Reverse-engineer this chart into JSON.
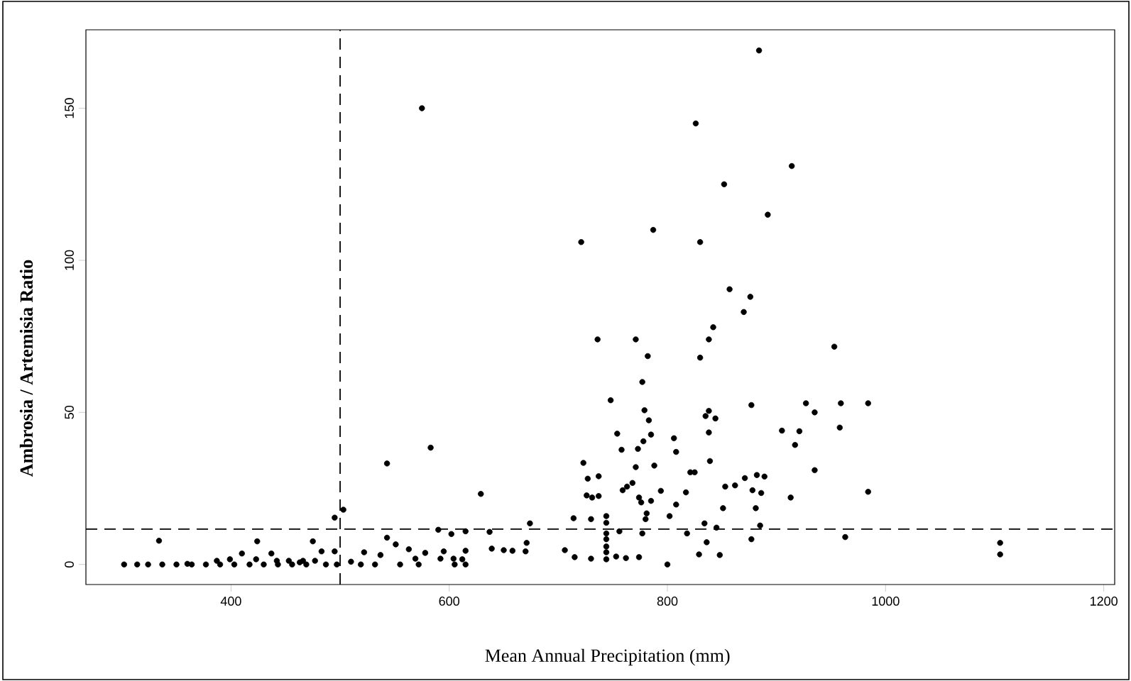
{
  "chart_data": {
    "type": "scatter",
    "xlabel": "Mean Annual Precipitation (mm)",
    "ylabel": "Ambrosia / Artemisia Ratio",
    "xlim": [
      267,
      1210
    ],
    "ylim": [
      -6.6,
      175.8
    ],
    "xticks": [
      400,
      600,
      800,
      1000,
      1200
    ],
    "yticks": [
      0,
      50,
      100,
      150
    ],
    "grid": false,
    "marker": "circle",
    "ref_lines": [
      {
        "axis": "x",
        "value": 500,
        "line_style": "dashed",
        "color": "#000000"
      },
      {
        "axis": "y",
        "value": 11.6,
        "line_style": "dashed",
        "color": "#000000"
      }
    ],
    "series": [
      {
        "color": "#000000",
        "x": [
          884,
          575,
          826,
          914,
          852,
          892,
          787,
          721,
          830,
          857,
          876,
          870,
          842,
          736,
          771,
          838,
          953,
          782,
          830,
          777,
          748,
          927,
          959,
          984,
          877,
          779,
          838,
          935,
          835,
          844,
          783,
          905,
          921,
          958,
          754,
          785,
          806,
          838,
          778,
          917,
          583,
          773,
          808,
          758,
          543,
          723,
          771,
          839,
          935,
          788,
          821,
          825,
          882,
          737,
          889,
          871,
          727,
          862,
          768,
          763,
          853,
          759,
          878,
          794,
          886,
          817,
          629,
          984,
          774,
          726,
          731,
          913,
          737,
          776,
          785,
          808,
          881,
          851,
          503,
          781,
          744,
          802,
          495,
          714,
          730,
          780,
          834,
          674,
          885,
          590,
          615,
          637,
          756,
          777,
          602,
          845,
          818,
          877,
          963,
          671,
          543,
          551,
          424,
          334,
          475,
          836,
          744,
          1105,
          1105,
          706,
          639,
          650,
          658,
          670,
          563,
          578,
          595,
          615,
          495,
          522,
          537,
          483,
          410,
          437,
          829,
          848,
          730,
          753,
          762,
          774,
          744,
          715,
          569,
          604,
          592,
          612,
          510,
          477,
          466,
          453,
          442,
          423,
          399,
          387,
          800,
          605,
          615,
          572,
          555,
          532,
          519,
          497,
          487,
          469,
          456,
          443,
          430,
          417,
          403,
          390,
          377,
          364,
          350,
          337,
          324,
          314,
          302,
          360,
          463,
          744,
          744,
          744,
          744
        ],
        "values": [
          169,
          150,
          145,
          131,
          125,
          115,
          110,
          106,
          106,
          90.5,
          88,
          83,
          78,
          74,
          74,
          74,
          71.6,
          68.5,
          68,
          60,
          54,
          53,
          53,
          53,
          52.4,
          50.7,
          50.5,
          50,
          48.8,
          48,
          47.4,
          44,
          43.8,
          45,
          43,
          42.7,
          41.5,
          43.4,
          40.5,
          39.3,
          38.4,
          38,
          37,
          37.7,
          33.2,
          33.4,
          32,
          34,
          31,
          32.5,
          30.3,
          30.3,
          29.4,
          29,
          28.9,
          28.4,
          28.2,
          26,
          26.8,
          25.6,
          25.6,
          24.4,
          24.4,
          24.2,
          23.5,
          23.7,
          23.2,
          23.9,
          22,
          22.7,
          22,
          22,
          22.5,
          20.4,
          20.9,
          19.7,
          18.5,
          18.5,
          18,
          16.8,
          15.9,
          15.9,
          15.4,
          15.2,
          14.9,
          14.9,
          13.5,
          13.5,
          12.8,
          11.4,
          10.9,
          10.7,
          10.9,
          10.2,
          10,
          12.1,
          10.2,
          8.3,
          9,
          7.1,
          8.8,
          6.6,
          7.6,
          7.8,
          7.6,
          7.3,
          5.9,
          7.1,
          3.3,
          4.7,
          5.2,
          4.7,
          4.5,
          4.3,
          5,
          3.8,
          4.3,
          4.5,
          4.3,
          4,
          3.1,
          4.3,
          3.6,
          3.6,
          3.3,
          3.1,
          1.9,
          2.6,
          2.1,
          2.4,
          1.7,
          2.4,
          1.9,
          1.9,
          1.9,
          1.7,
          0.9,
          1.2,
          1.2,
          1.2,
          1.2,
          1.7,
          1.7,
          1.2,
          0,
          0,
          0,
          0,
          0,
          0,
          0,
          0,
          0,
          0,
          0,
          0,
          0,
          0,
          0,
          0,
          0,
          0,
          0,
          0,
          0,
          0,
          0,
          0.2,
          0.7,
          13.7,
          10.2,
          8.3,
          4
        ]
      }
    ]
  }
}
